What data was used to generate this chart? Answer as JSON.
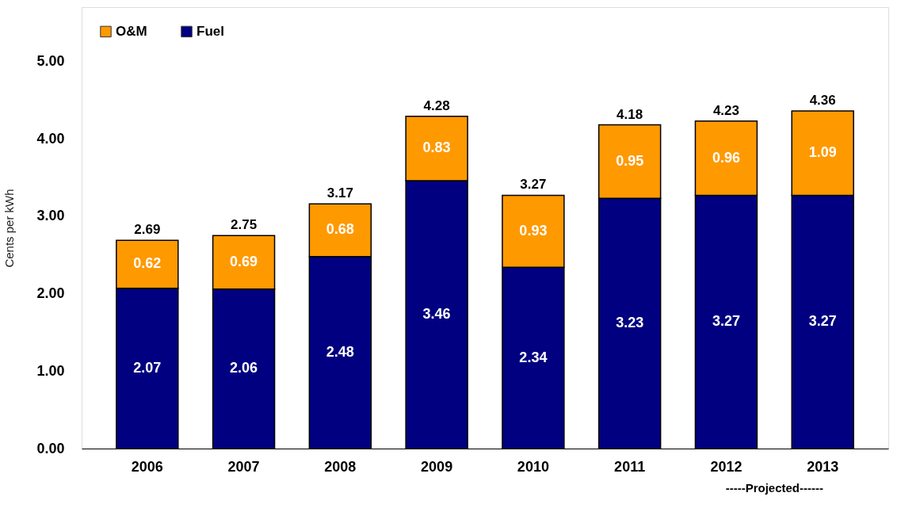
{
  "chart_data": {
    "type": "bar",
    "stacked": true,
    "categories": [
      "2006",
      "2007",
      "2008",
      "2009",
      "2010",
      "2011",
      "2012",
      "2013"
    ],
    "series": [
      {
        "name": "Fuel",
        "color": "#000080",
        "values": [
          2.07,
          2.06,
          2.48,
          3.46,
          2.34,
          3.23,
          3.27,
          3.27
        ]
      },
      {
        "name": "O&M",
        "color": "#ff9900",
        "values": [
          0.62,
          0.69,
          0.68,
          0.83,
          0.93,
          0.95,
          0.96,
          1.09
        ]
      }
    ],
    "totals": [
      "2.69",
      "2.75",
      "3.17",
      "4.28",
      "3.27",
      "4.18",
      "4.23",
      "4.36"
    ],
    "data_labels": true,
    "ylabel": "Cents per kWh",
    "ylim": [
      0,
      5.7
    ],
    "yticks": [
      {
        "value": 0,
        "label": "0.00"
      },
      {
        "value": 1,
        "label": "1.00"
      },
      {
        "value": 2,
        "label": "2.00"
      },
      {
        "value": 3,
        "label": "3.00"
      },
      {
        "value": 4,
        "label": "4.00"
      },
      {
        "value": 5,
        "label": "5.00"
      }
    ],
    "legend": "top left",
    "annotations": [
      "-----Projected------"
    ]
  }
}
